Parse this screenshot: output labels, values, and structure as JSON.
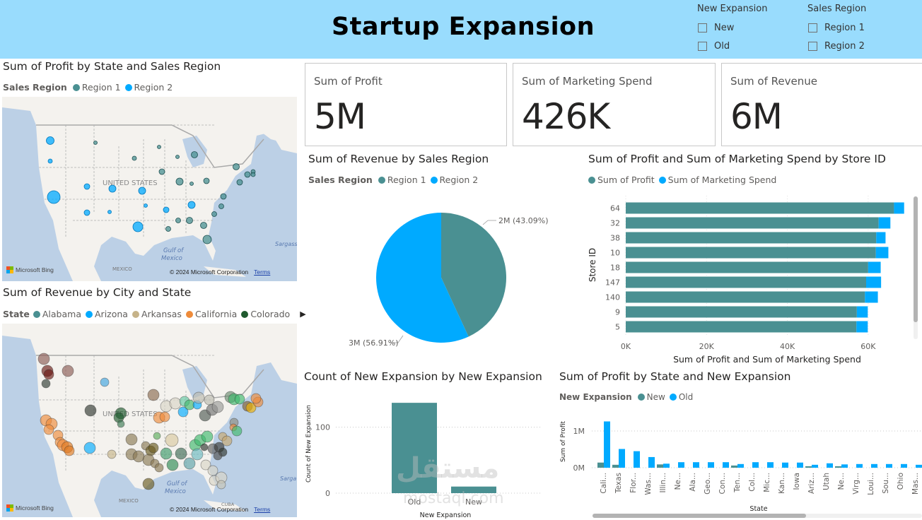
{
  "header": {
    "title": "Startup Expansion",
    "background_color": "#99dcfd"
  },
  "slicers": [
    {
      "title": "New Expansion",
      "options": [
        "New",
        "Old"
      ],
      "checked": [
        false,
        false
      ]
    },
    {
      "title": "Sales Region",
      "options": [
        "Region 1",
        "Region 2"
      ],
      "checked": [
        false,
        false
      ]
    }
  ],
  "colors": {
    "region1": "#4a9092",
    "region2": "#00aaff",
    "profit": "#4a9092",
    "marketing": "#00aaff"
  },
  "map_profit": {
    "title": "Sum of Profit by State and Sales Region",
    "legend_title": "Sales Region",
    "legend": [
      {
        "label": "Region 1",
        "color": "#4a9092"
      },
      {
        "label": "Region 2",
        "color": "#00aaff"
      }
    ],
    "map_labels": {
      "country": "UNITED STATES",
      "gulf": "Gulf of Mexico",
      "mexico": "Mexico",
      "sargasso": "Sargass"
    },
    "attribution": "© 2024 Microsoft Corporation",
    "terms": "Terms",
    "bing": "Microsoft Bing"
  },
  "map_revenue": {
    "title": "Sum of Revenue by City and State",
    "legend_title": "State",
    "legend": [
      {
        "label": "Alabama",
        "color": "#4a9092"
      },
      {
        "label": "Arizona",
        "color": "#00aaff"
      },
      {
        "label": "Arkansas",
        "color": "#c6b389"
      },
      {
        "label": "California",
        "color": "#ee8b3a"
      },
      {
        "label": "Colorado",
        "color": "#1f5a2e"
      }
    ],
    "legend_more_icon": "chevron-right-icon",
    "map_labels": {
      "country": "UNITED STATES",
      "gulf": "Gulf of Mexico",
      "mexico": "Mexico",
      "cuba": "Cuba",
      "sargasso": "Sarga"
    },
    "attribution": "© 2024 Microsoft Corporation",
    "terms": "Terms",
    "bing": "Microsoft Bing"
  },
  "cards": [
    {
      "label": "Sum of Profit",
      "value": "5M"
    },
    {
      "label": "Sum of Marketing Spend",
      "value": "426K"
    },
    {
      "label": "Sum of Revenue",
      "value": "6M"
    }
  ],
  "chart_data": [
    {
      "id": "pie",
      "type": "pie",
      "title": "Sum of Revenue by Sales Region",
      "legend_title": "Sales Region",
      "categories": [
        "Region 1",
        "Region 2"
      ],
      "values": [
        43.09,
        56.91
      ],
      "data_labels": [
        "2M (43.09%)",
        "3M (56.91%)"
      ],
      "colors": [
        "#4a9092",
        "#00aaff"
      ]
    },
    {
      "id": "storebar",
      "type": "bar",
      "orientation": "horizontal",
      "stacked": true,
      "title": "Sum of Profit and Sum of Marketing Spend by Store ID",
      "xlabel": "Sum of Profit and Sum of Marketing Spend",
      "ylabel": "Store ID",
      "categories": [
        "64",
        "32",
        "38",
        "10",
        "18",
        "147",
        "140",
        "9",
        "5"
      ],
      "series": [
        {
          "name": "Sum of Profit",
          "color": "#4a9092",
          "values": [
            66400,
            62600,
            62000,
            61900,
            60000,
            59500,
            59200,
            57200,
            57100
          ]
        },
        {
          "name": "Sum of Marketing Spend",
          "color": "#00aaff",
          "values": [
            2500,
            2900,
            2300,
            3100,
            3100,
            3700,
            3200,
            2700,
            2800
          ]
        }
      ],
      "xlim": [
        0,
        70000
      ],
      "xticks": [
        0,
        20000,
        40000,
        60000
      ],
      "xtick_labels": [
        "0K",
        "20K",
        "40K",
        "60K"
      ],
      "grid": true,
      "legend": "top-left"
    },
    {
      "id": "countbar",
      "type": "bar",
      "title": "Count of New Expansion by New Expansion",
      "xlabel": "New Expansion",
      "ylabel": "Count of New Expansion",
      "categories": [
        "Old",
        "New"
      ],
      "values": [
        137,
        10
      ],
      "color": "#4a9092",
      "ylim": [
        0,
        150
      ],
      "yticks": [
        0,
        100
      ],
      "ytick_labels": [
        "0",
        "100"
      ],
      "grid": true
    },
    {
      "id": "statebar",
      "type": "bar",
      "title": "Sum of Profit by State and New Expansion",
      "legend_title": "New Expansion",
      "xlabel": "State",
      "ylabel": "Sum of Profit",
      "categories": [
        "Cali...",
        "Texas",
        "Flor...",
        "Was...",
        "Illin...",
        "Ne...",
        "Ala...",
        "Geo...",
        "Con...",
        "Ten...",
        "Col...",
        "Mic...",
        "Kan...",
        "Iowa",
        "Ariz...",
        "Utah",
        "Ne...",
        "Virg...",
        "Loui...",
        "Sou...",
        "Ohio",
        "Mas..."
      ],
      "series": [
        {
          "name": "New",
          "color": "#4a9092",
          "values": [
            0.14,
            0.08,
            0,
            0,
            0.09,
            0,
            0,
            0,
            0,
            0.06,
            0,
            0,
            0,
            0,
            0.04,
            0,
            0.04,
            0,
            0,
            0,
            0,
            0
          ]
        },
        {
          "name": "Old",
          "color": "#00aaff",
          "values": [
            1.26,
            0.51,
            0.45,
            0.29,
            0.11,
            0.15,
            0.15,
            0.15,
            0.15,
            0.1,
            0.15,
            0.15,
            0.14,
            0.14,
            0.08,
            0.12,
            0.09,
            0.1,
            0.1,
            0.1,
            0.1,
            0.08
          ]
        }
      ],
      "units": "M",
      "ylim": [
        0,
        1.3
      ],
      "yticks": [
        0,
        1
      ],
      "ytick_labels": [
        "0M",
        "1M"
      ],
      "grid": true,
      "legend": "top-left"
    }
  ],
  "profit_map_points": [
    {
      "x": 68,
      "y": 62,
      "r": 5.5,
      "g": 2
    },
    {
      "x": 68,
      "y": 91,
      "r": 3,
      "g": 2
    },
    {
      "x": 132,
      "y": 65,
      "r": 2.5,
      "g": 1
    },
    {
      "x": 187,
      "y": 87,
      "r": 3,
      "g": 1
    },
    {
      "x": 222,
      "y": 71,
      "r": 2.5,
      "g": 1
    },
    {
      "x": 248,
      "y": 85,
      "r": 2.5,
      "g": 1
    },
    {
      "x": 272,
      "y": 82,
      "r": 4.5,
      "g": 1
    },
    {
      "x": 226,
      "y": 106,
      "r": 4,
      "g": 1
    },
    {
      "x": 251,
      "y": 120,
      "r": 5,
      "g": 1
    },
    {
      "x": 268,
      "y": 123,
      "r": 2.5,
      "g": 1
    },
    {
      "x": 289,
      "y": 119,
      "r": 4,
      "g": 1
    },
    {
      "x": 331,
      "y": 99,
      "r": 4.5,
      "g": 1
    },
    {
      "x": 347,
      "y": 110,
      "r": 4,
      "g": 1
    },
    {
      "x": 355,
      "y": 106,
      "r": 3,
      "g": 1
    },
    {
      "x": 355,
      "y": 110,
      "r": 3,
      "g": 1
    },
    {
      "x": 336,
      "y": 121,
      "r": 4,
      "g": 1
    },
    {
      "x": 313,
      "y": 141,
      "r": 4,
      "g": 1
    },
    {
      "x": 310,
      "y": 155,
      "r": 3.5,
      "g": 1
    },
    {
      "x": 300,
      "y": 166,
      "r": 3.5,
      "g": 1
    },
    {
      "x": 285,
      "y": 182,
      "r": 4.5,
      "g": 1
    },
    {
      "x": 265,
      "y": 175,
      "r": 4.5,
      "g": 1
    },
    {
      "x": 249,
      "y": 175,
      "r": 3.5,
      "g": 1
    },
    {
      "x": 235,
      "y": 187,
      "r": 3.5,
      "g": 1
    },
    {
      "x": 290,
      "y": 202,
      "r": 6,
      "g": 1
    },
    {
      "x": 120,
      "y": 127,
      "r": 4,
      "g": 2
    },
    {
      "x": 156,
      "y": 130,
      "r": 5,
      "g": 2
    },
    {
      "x": 198,
      "y": 133,
      "r": 5,
      "g": 2
    },
    {
      "x": 120,
      "y": 164,
      "r": 4,
      "g": 2
    },
    {
      "x": 152,
      "y": 163,
      "r": 2.5,
      "g": 2
    },
    {
      "x": 73,
      "y": 142,
      "r": 9,
      "g": 2
    },
    {
      "x": 203,
      "y": 154,
      "r": 2.5,
      "g": 2
    },
    {
      "x": 232,
      "y": 160,
      "r": 4,
      "g": 2
    },
    {
      "x": 268,
      "y": 153,
      "r": 5,
      "g": 2
    },
    {
      "x": 192,
      "y": 184,
      "r": 7,
      "g": 2
    }
  ],
  "revenue_map_points": [
    {
      "x": 59,
      "y": 50,
      "r": 8,
      "c": "#8a5a55"
    },
    {
      "x": 64,
      "y": 67,
      "r": 8,
      "c": "#6a1a15"
    },
    {
      "x": 66,
      "y": 72,
      "r": 7,
      "c": "#6a1a15"
    },
    {
      "x": 93,
      "y": 67,
      "r": 8,
      "c": "#8a5a55"
    },
    {
      "x": 62,
      "y": 85,
      "r": 6,
      "c": "#2f3a32"
    },
    {
      "x": 145,
      "y": 83,
      "r": 6,
      "c": "#3fa3de"
    },
    {
      "x": 125,
      "y": 123,
      "r": 8,
      "c": "#2f3530"
    },
    {
      "x": 168,
      "y": 127,
      "r": 8,
      "c": "#1f5a2e"
    },
    {
      "x": 165,
      "y": 133,
      "r": 7,
      "c": "#1f5a2e"
    },
    {
      "x": 168,
      "y": 142,
      "r": 5,
      "c": "#3d7a55"
    },
    {
      "x": 214,
      "y": 101,
      "r": 8,
      "c": "#8a6a50"
    },
    {
      "x": 232,
      "y": 117,
      "r": 8,
      "c": "#d8d4c6"
    },
    {
      "x": 245,
      "y": 113,
      "r": 8,
      "c": "#d8d4c6"
    },
    {
      "x": 258,
      "y": 110,
      "r": 7,
      "c": "#66c9a4"
    },
    {
      "x": 256,
      "y": 125,
      "r": 7,
      "c": "#00aaff"
    },
    {
      "x": 265,
      "y": 115,
      "r": 7,
      "c": "#3fb96d"
    },
    {
      "x": 276,
      "y": 115,
      "r": 6,
      "c": "#00aaff"
    },
    {
      "x": 278,
      "y": 105,
      "r": 8,
      "c": "#bab8ae"
    },
    {
      "x": 293,
      "y": 108,
      "r": 7,
      "c": "#bab8ae"
    },
    {
      "x": 287,
      "y": 130,
      "r": 8,
      "c": "#505a55"
    },
    {
      "x": 297,
      "y": 122,
      "r": 8,
      "c": "#707070"
    },
    {
      "x": 305,
      "y": 118,
      "r": 8,
      "c": "#9a9a98"
    },
    {
      "x": 323,
      "y": 104,
      "r": 8,
      "c": "#6a8a70"
    },
    {
      "x": 328,
      "y": 107,
      "r": 8,
      "c": "#3fb96d"
    },
    {
      "x": 336,
      "y": 107,
      "r": 7,
      "c": "#3fb96d"
    },
    {
      "x": 347,
      "y": 117,
      "r": 7,
      "c": "#806030"
    },
    {
      "x": 352,
      "y": 119,
      "r": 7,
      "c": "#f0b000"
    },
    {
      "x": 362,
      "y": 111,
      "r": 7,
      "c": "#ee8b3a"
    },
    {
      "x": 359,
      "y": 106,
      "r": 7,
      "c": "#ee8b3a"
    },
    {
      "x": 222,
      "y": 133,
      "r": 8,
      "c": "#ee8b3a"
    },
    {
      "x": 230,
      "y": 132,
      "r": 7,
      "c": "#ee8b3a"
    },
    {
      "x": 62,
      "y": 137,
      "r": 8,
      "c": "#ee8b3a"
    },
    {
      "x": 70,
      "y": 142,
      "r": 8,
      "c": "#ee8b3a"
    },
    {
      "x": 66,
      "y": 150,
      "r": 7,
      "c": "#ee8b3a"
    },
    {
      "x": 79,
      "y": 158,
      "r": 7,
      "c": "#ee8b3a"
    },
    {
      "x": 82,
      "y": 168,
      "r": 7,
      "c": "#ee8b3a"
    },
    {
      "x": 86,
      "y": 172,
      "r": 8,
      "c": "#ee8b3a"
    },
    {
      "x": 92,
      "y": 175,
      "r": 8,
      "c": "#e07a20"
    },
    {
      "x": 95,
      "y": 180,
      "r": 7,
      "c": "#e07a20"
    },
    {
      "x": 124,
      "y": 176,
      "r": 8,
      "c": "#00aaff"
    },
    {
      "x": 155,
      "y": 185,
      "r": 6,
      "c": "#c6b389"
    },
    {
      "x": 183,
      "y": 164,
      "r": 8,
      "c": "#8a7a55"
    },
    {
      "x": 183,
      "y": 185,
      "r": 8,
      "c": "#8a7a55"
    },
    {
      "x": 193,
      "y": 188,
      "r": 8,
      "c": "#8a7a55"
    },
    {
      "x": 203,
      "y": 173,
      "r": 6,
      "c": "#8a7a55"
    },
    {
      "x": 210,
      "y": 180,
      "r": 7,
      "c": "#6a5a20"
    },
    {
      "x": 214,
      "y": 176,
      "r": 7,
      "c": "#6a5a20"
    },
    {
      "x": 207,
      "y": 193,
      "r": 8,
      "c": "#8a7a55"
    },
    {
      "x": 216,
      "y": 198,
      "r": 6,
      "c": "#8a7a55"
    },
    {
      "x": 222,
      "y": 204,
      "r": 6,
      "c": "#8a7a55"
    },
    {
      "x": 219,
      "y": 159,
      "r": 5,
      "c": "#5aaa5a"
    },
    {
      "x": 240,
      "y": 165,
      "r": 9,
      "c": "#d8c8a0"
    },
    {
      "x": 232,
      "y": 184,
      "r": 8,
      "c": "#3d9a6a"
    },
    {
      "x": 241,
      "y": 200,
      "r": 8,
      "c": "#2e8a55"
    },
    {
      "x": 253,
      "y": 184,
      "r": 8,
      "c": "#3d6a55"
    },
    {
      "x": 265,
      "y": 198,
      "r": 8,
      "c": "#5aa0a8"
    },
    {
      "x": 273,
      "y": 172,
      "r": 8,
      "c": "#3fb96d"
    },
    {
      "x": 276,
      "y": 185,
      "r": 8,
      "c": "#6ab8c0"
    },
    {
      "x": 280,
      "y": 165,
      "r": 8,
      "c": "#3fb96d"
    },
    {
      "x": 290,
      "y": 160,
      "r": 8,
      "c": "#3fb96d"
    },
    {
      "x": 286,
      "y": 175,
      "r": 5,
      "c": "#2f3530"
    },
    {
      "x": 298,
      "y": 177,
      "r": 7,
      "c": "#606060"
    },
    {
      "x": 307,
      "y": 175,
      "r": 7,
      "c": "#3a3a38"
    },
    {
      "x": 312,
      "y": 182,
      "r": 6,
      "c": "#2f3530"
    },
    {
      "x": 305,
      "y": 187,
      "r": 6,
      "c": "#505050"
    },
    {
      "x": 312,
      "y": 160,
      "r": 6,
      "c": "#c6a870"
    },
    {
      "x": 318,
      "y": 166,
      "r": 7,
      "c": "#c6a870"
    },
    {
      "x": 328,
      "y": 140,
      "r": 6,
      "c": "#8a8a80"
    },
    {
      "x": 327,
      "y": 147,
      "r": 5,
      "c": "#ee8b3a"
    },
    {
      "x": 332,
      "y": 152,
      "r": 7,
      "c": "#3fb96d"
    },
    {
      "x": 288,
      "y": 200,
      "r": 7,
      "c": "#d8d4c6"
    },
    {
      "x": 298,
      "y": 208,
      "r": 7,
      "c": "#d8d4c6"
    },
    {
      "x": 300,
      "y": 222,
      "r": 7,
      "c": "#d8d4c6"
    },
    {
      "x": 310,
      "y": 218,
      "r": 8,
      "c": "#d8d4c6"
    },
    {
      "x": 310,
      "y": 228,
      "r": 6,
      "c": "#c8c4b6"
    },
    {
      "x": 207,
      "y": 227,
      "r": 8,
      "c": "#6a5a20"
    }
  ],
  "watermark": {
    "arabic": "مستقل",
    "latin": "mostaql.com"
  }
}
